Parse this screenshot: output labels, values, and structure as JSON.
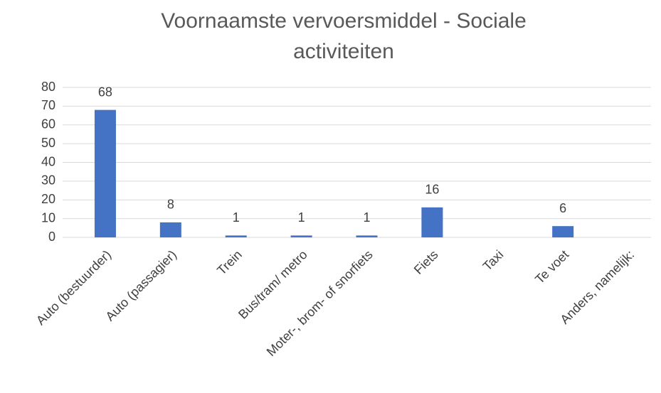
{
  "chart_data": {
    "type": "bar",
    "title": "Voornaamste vervoersmiddel - Sociale activiteiten",
    "categories": [
      "Auto (bestuurder)",
      "Auto (passagier)",
      "Trein",
      "Bus/tram/ metro",
      "Moter-, brom- of snorfiets",
      "Fiets",
      "Taxi",
      "Te voet",
      "Anders, namelijk:"
    ],
    "values": [
      68,
      8,
      1,
      1,
      1,
      16,
      0,
      6,
      0
    ],
    "value_labels": [
      "68",
      "8",
      "1",
      "1",
      "1",
      "16",
      null,
      "6",
      null
    ],
    "color": "#4472c4",
    "ylim": [
      0,
      80
    ],
    "yticks": [
      0,
      10,
      20,
      30,
      40,
      50,
      60,
      70,
      80
    ],
    "grid": true
  }
}
